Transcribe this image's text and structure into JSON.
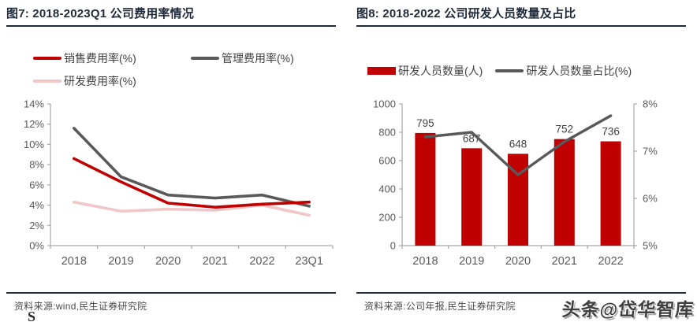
{
  "figure7": {
    "title": "图7: 2018-2023Q1 公司费用率情况",
    "source": "资料来源:wind,民生证券研究院"
  },
  "figure8": {
    "title": "图8: 2018-2022 公司研发人员数量及占比",
    "source": "资料来源:公司年报,民生证券研究院"
  },
  "watermark": "头条@岱华智库",
  "stray_mark": "S",
  "colors": {
    "accent_red": "#c00000",
    "dark_gray": "#595959",
    "light_pink": "#f0c6c6",
    "axis": "#a6a6a6",
    "tick_text": "#595959",
    "bar_label_text": "#404040",
    "title_navy": "#222b3c"
  },
  "chart_data": [
    {
      "type": "line",
      "title": "2018-2023Q1 公司费用率情况",
      "categories": [
        "2018",
        "2019",
        "2020",
        "2021",
        "2022",
        "23Q1"
      ],
      "series": [
        {
          "name": "销售费用率(%)",
          "color": "#c00000",
          "values": [
            8.6,
            6.3,
            4.2,
            3.8,
            4.1,
            4.3
          ]
        },
        {
          "name": "管理费用率(%)",
          "color": "#595959",
          "values": [
            11.6,
            6.8,
            5.0,
            4.7,
            5.0,
            3.9
          ]
        },
        {
          "name": "研发费用率(%)",
          "color": "#f0c6c6",
          "values": [
            4.3,
            3.4,
            3.6,
            3.5,
            4.0,
            3.0
          ]
        }
      ],
      "ylim": [
        0,
        14
      ],
      "ytick_step": 2,
      "ytick_suffix": "%",
      "grid": false,
      "legend_position": "top"
    },
    {
      "type": "bar",
      "title": "2018-2022 公司研发人员数量及占比",
      "categories": [
        "2018",
        "2019",
        "2020",
        "2021",
        "2022"
      ],
      "bar_series": {
        "name": "研发人员数量(人)",
        "color": "#c00000",
        "values": [
          795,
          687,
          648,
          752,
          736
        ]
      },
      "line_series": {
        "name": "研发人员数量占比(%)",
        "color": "#595959",
        "axis": "right",
        "values": [
          7.3,
          7.4,
          6.5,
          7.2,
          7.75
        ]
      },
      "left_ylim": [
        0,
        1000
      ],
      "left_ytick_step": 200,
      "right_ylim": [
        5,
        8
      ],
      "right_ytick_step": 1,
      "right_ytick_suffix": "%",
      "bar_labels": [
        795,
        687,
        648,
        752,
        736
      ],
      "grid": false,
      "legend_position": "top"
    }
  ]
}
